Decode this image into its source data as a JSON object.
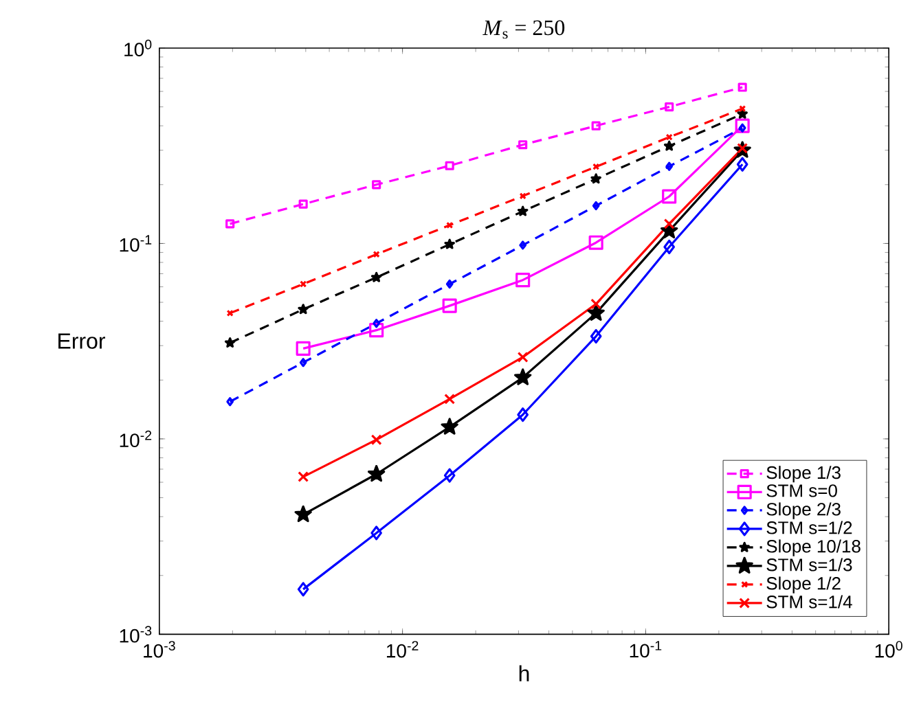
{
  "chart_data": {
    "type": "line",
    "title": "*M*$_{s}$ = 250",
    "xlabel": "h",
    "ylabel": "Error",
    "log": "xy",
    "grid": false,
    "legend": "bottom right",
    "xlim": [
      0.001,
      1
    ],
    "ylim": [
      0.001,
      1
    ],
    "xticks": [
      {
        "value": 0.001,
        "label": "10$^{-3}$"
      },
      {
        "value": 0.01,
        "label": "10$^{-2}$"
      },
      {
        "value": 0.1,
        "label": "10$^{-1}$"
      },
      {
        "value": 1,
        "label": "10$^{0}$"
      }
    ],
    "yticks": [
      {
        "value": 0.001,
        "label": "10$^{-3}$"
      },
      {
        "value": 0.01,
        "label": "10$^{-2}$"
      },
      {
        "value": 0.1,
        "label": "10$^{-1}$"
      },
      {
        "value": 1,
        "label": "10$^{0}$"
      }
    ],
    "x": [
      0.001953125,
      0.00390625,
      0.0078125,
      0.015625,
      0.03125,
      0.0625,
      0.125,
      0.25
    ],
    "series": [
      {
        "name": "Slope 1/3",
        "color": "#ff00ff",
        "marker": "square",
        "line_style": "dashed",
        "values": [
          0.126,
          0.159,
          0.2,
          0.25,
          0.32,
          0.4,
          0.5,
          0.63
        ]
      },
      {
        "name": "STM s=0",
        "color": "#ff00ff",
        "marker": "square",
        "line_style": "solid",
        "values": [
          null,
          0.029,
          0.036,
          0.048,
          0.065,
          0.101,
          0.174,
          0.4
        ]
      },
      {
        "name": "Slope 2/3",
        "color": "#0000ff",
        "marker": "diamond",
        "line_style": "dashed",
        "values": [
          0.0155,
          0.0246,
          0.039,
          0.062,
          0.098,
          0.156,
          0.248,
          0.39
        ]
      },
      {
        "name": "STM s=1/2",
        "color": "#0000ff",
        "marker": "diamond",
        "line_style": "solid",
        "values": [
          null,
          0.0017,
          0.0033,
          0.0065,
          0.0133,
          0.0335,
          0.096,
          0.254
        ]
      },
      {
        "name": "Slope 10/18",
        "color": "#000000",
        "marker": "star",
        "line_style": "dashed",
        "values": [
          0.031,
          0.046,
          0.067,
          0.099,
          0.146,
          0.214,
          0.315,
          0.46
        ]
      },
      {
        "name": "STM s=1/3",
        "color": "#000000",
        "marker": "star",
        "line_style": "solid",
        "values": [
          null,
          0.0041,
          0.0066,
          0.0115,
          0.0206,
          0.044,
          0.116,
          0.3
        ]
      },
      {
        "name": "Slope 1/2",
        "color": "#ff0000",
        "marker": "cross",
        "line_style": "dashed",
        "values": [
          0.044,
          0.062,
          0.088,
          0.124,
          0.175,
          0.247,
          0.35,
          0.49
        ]
      },
      {
        "name": "STM s=1/4",
        "color": "#ff0000",
        "marker": "cross",
        "line_style": "solid",
        "values": [
          null,
          0.0064,
          0.0099,
          0.016,
          0.0262,
          0.049,
          0.126,
          0.307
        ]
      }
    ]
  }
}
